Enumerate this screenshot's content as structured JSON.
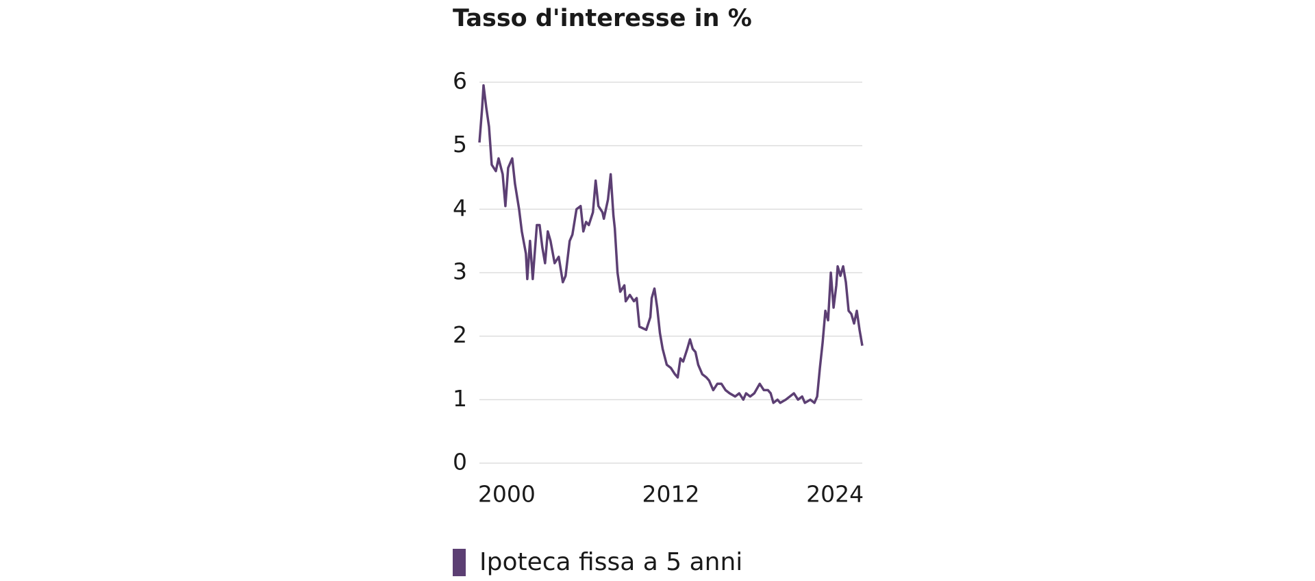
{
  "chart_data": {
    "type": "line",
    "title": "Tasso d'interesse in %",
    "x": [
      1998.0,
      1998.2,
      1998.3,
      1998.5,
      1998.7,
      1998.9,
      1999.2,
      1999.4,
      1999.7,
      1999.9,
      2000.1,
      2000.4,
      2000.6,
      2000.9,
      2001.1,
      2001.4,
      2001.5,
      2001.7,
      2001.9,
      2002.2,
      2002.4,
      2002.6,
      2002.8,
      2003.0,
      2003.2,
      2003.5,
      2003.8,
      2004.1,
      2004.3,
      2004.6,
      2004.8,
      2005.1,
      2005.4,
      2005.6,
      2005.8,
      2006.0,
      2006.3,
      2006.5,
      2006.7,
      2007.0,
      2007.1,
      2007.4,
      2007.6,
      2007.8,
      2007.9,
      2008.1,
      2008.3,
      2008.6,
      2008.7,
      2009.0,
      2009.3,
      2009.5,
      2009.7,
      2010.2,
      2010.5,
      2010.6,
      2010.8,
      2011.0,
      2011.2,
      2011.4,
      2011.7,
      2012.0,
      2012.3,
      2012.5,
      2012.7,
      2012.9,
      2013.2,
      2013.4,
      2013.6,
      2013.8,
      2014.0,
      2014.3,
      2014.6,
      2014.8,
      2015.1,
      2015.4,
      2015.7,
      2016.0,
      2016.3,
      2016.7,
      2017.0,
      2017.3,
      2017.5,
      2017.8,
      2018.1,
      2018.5,
      2018.8,
      2019.1,
      2019.3,
      2019.5,
      2019.8,
      2020.0,
      2020.4,
      2020.7,
      2021.0,
      2021.3,
      2021.6,
      2021.8,
      2022.2,
      2022.5,
      2022.7,
      2022.9,
      2023.1,
      2023.3,
      2023.5,
      2023.7,
      2023.9,
      2024.1,
      2024.2,
      2024.4,
      2024.6,
      2024.8,
      2025.0,
      2025.2,
      2025.4,
      2025.6,
      2025.8,
      2026.0
    ],
    "series": [
      {
        "name": "Ipoteca fissa a 5 anni",
        "color": "#5c3f73",
        "values": [
          5.05,
          5.6,
          5.95,
          5.6,
          5.3,
          4.7,
          4.6,
          4.8,
          4.55,
          4.05,
          4.65,
          4.8,
          4.4,
          4.0,
          3.65,
          3.3,
          2.9,
          3.5,
          2.9,
          3.75,
          3.75,
          3.4,
          3.15,
          3.65,
          3.5,
          3.15,
          3.25,
          2.85,
          2.95,
          3.5,
          3.6,
          4.0,
          4.05,
          3.65,
          3.8,
          3.75,
          3.95,
          4.45,
          4.05,
          3.95,
          3.85,
          4.15,
          4.55,
          3.9,
          3.7,
          3.0,
          2.7,
          2.8,
          2.55,
          2.65,
          2.55,
          2.6,
          2.15,
          2.1,
          2.3,
          2.6,
          2.75,
          2.45,
          2.05,
          1.8,
          1.55,
          1.5,
          1.4,
          1.35,
          1.65,
          1.6,
          1.8,
          1.95,
          1.8,
          1.75,
          1.55,
          1.4,
          1.35,
          1.3,
          1.15,
          1.25,
          1.25,
          1.15,
          1.1,
          1.05,
          1.1,
          1.0,
          1.1,
          1.05,
          1.1,
          1.25,
          1.15,
          1.15,
          1.1,
          0.95,
          1.0,
          0.95,
          1.0,
          1.05,
          1.1,
          1.0,
          1.05,
          0.95,
          1.0,
          0.95,
          1.05,
          1.5,
          1.9,
          2.4,
          2.25,
          3.0,
          2.45,
          2.8,
          3.1,
          2.95,
          3.1,
          2.85,
          2.4,
          2.35,
          2.2,
          2.4,
          2.1,
          1.85
        ]
      }
    ],
    "xlim": [
      1998.0,
      2026.0
    ],
    "xticks": [
      2000,
      2012,
      2024
    ],
    "ylim": [
      0,
      6
    ],
    "yticks": [
      0,
      1,
      2,
      3,
      4,
      5,
      6
    ],
    "grid": true
  }
}
